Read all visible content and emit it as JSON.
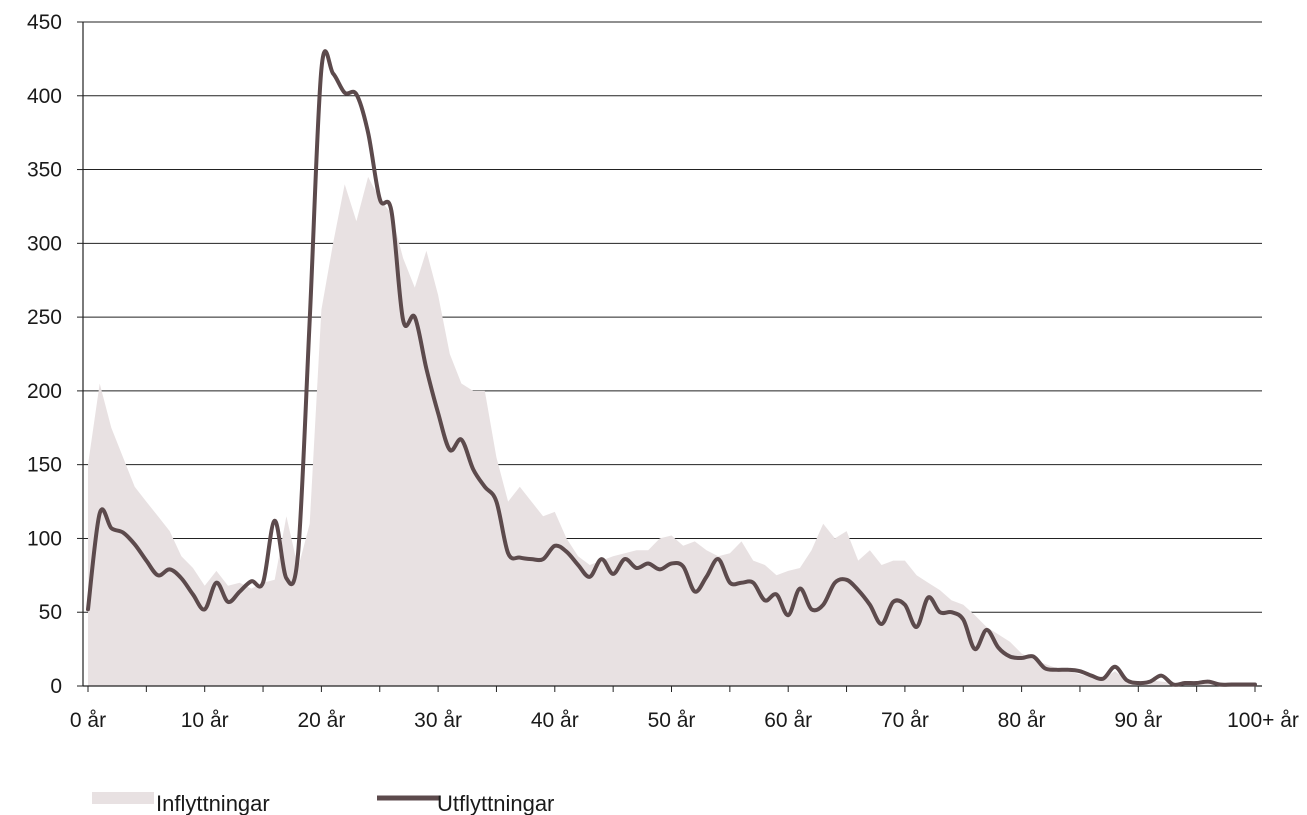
{
  "chart_data": {
    "type": "area",
    "title": "",
    "xlabel": "",
    "ylabel": "",
    "xlim": [
      0,
      100
    ],
    "ylim": [
      0,
      450
    ],
    "y_ticks": [
      0,
      50,
      100,
      150,
      200,
      250,
      300,
      350,
      400,
      450
    ],
    "x_ticks": [
      {
        "value": 0,
        "label": "0 år"
      },
      {
        "value": 10,
        "label": "10 år"
      },
      {
        "value": 20,
        "label": "20 år"
      },
      {
        "value": 30,
        "label": "30 år"
      },
      {
        "value": 40,
        "label": "40 år"
      },
      {
        "value": 50,
        "label": "50 år"
      },
      {
        "value": 60,
        "label": "60 år"
      },
      {
        "value": 70,
        "label": "70 år"
      },
      {
        "value": 80,
        "label": "80 år"
      },
      {
        "value": 90,
        "label": "90 år"
      },
      {
        "value": 100,
        "label": "100+ år"
      }
    ],
    "grid": "horizontal",
    "legend_position": "bottom-left",
    "series": [
      {
        "name": "Inflyttningar",
        "style": "area",
        "color": "#e8e1e2",
        "x": [
          0,
          1,
          2,
          3,
          4,
          5,
          6,
          7,
          8,
          9,
          10,
          11,
          12,
          13,
          14,
          15,
          16,
          17,
          18,
          19,
          20,
          21,
          22,
          23,
          24,
          25,
          26,
          27,
          28,
          29,
          30,
          31,
          32,
          33,
          34,
          35,
          36,
          37,
          38,
          39,
          40,
          41,
          42,
          43,
          44,
          45,
          46,
          47,
          48,
          49,
          50,
          51,
          52,
          53,
          54,
          55,
          56,
          57,
          58,
          59,
          60,
          61,
          62,
          63,
          64,
          65,
          66,
          67,
          68,
          69,
          70,
          71,
          72,
          73,
          74,
          75,
          76,
          77,
          78,
          79,
          80,
          81,
          82,
          83,
          84,
          85,
          86,
          87,
          88,
          89,
          90,
          91,
          92,
          93,
          94,
          95,
          96,
          97,
          98,
          99,
          100
        ],
        "values": [
          150,
          205,
          175,
          155,
          135,
          125,
          115,
          105,
          88,
          80,
          68,
          78,
          68,
          70,
          66,
          70,
          72,
          115,
          80,
          110,
          255,
          300,
          340,
          315,
          345,
          330,
          320,
          290,
          270,
          295,
          265,
          225,
          205,
          200,
          200,
          155,
          125,
          135,
          125,
          115,
          118,
          100,
          88,
          82,
          85,
          88,
          90,
          92,
          92,
          100,
          102,
          95,
          98,
          92,
          88,
          90,
          98,
          85,
          82,
          75,
          78,
          80,
          92,
          110,
          100,
          105,
          85,
          92,
          82,
          85,
          85,
          75,
          70,
          65,
          58,
          55,
          48,
          40,
          35,
          30,
          22,
          18,
          15,
          12,
          10,
          8,
          6,
          5,
          10,
          4,
          3,
          4,
          3,
          2,
          2,
          2,
          2,
          1,
          1,
          1,
          1
        ]
      },
      {
        "name": "Utflyttningar",
        "style": "line",
        "color": "#5c4a4c",
        "x": [
          0,
          1,
          2,
          3,
          4,
          5,
          6,
          7,
          8,
          9,
          10,
          11,
          12,
          13,
          14,
          15,
          16,
          17,
          18,
          19,
          20,
          21,
          22,
          23,
          24,
          25,
          26,
          27,
          28,
          29,
          30,
          31,
          32,
          33,
          34,
          35,
          36,
          37,
          38,
          39,
          40,
          41,
          42,
          43,
          44,
          45,
          46,
          47,
          48,
          49,
          50,
          51,
          52,
          53,
          54,
          55,
          56,
          57,
          58,
          59,
          60,
          61,
          62,
          63,
          64,
          65,
          66,
          67,
          68,
          69,
          70,
          71,
          72,
          73,
          74,
          75,
          76,
          77,
          78,
          79,
          80,
          81,
          82,
          83,
          84,
          85,
          86,
          87,
          88,
          89,
          90,
          91,
          92,
          93,
          94,
          95,
          96,
          97,
          98,
          99,
          100
        ],
        "values": [
          52,
          117,
          107,
          104,
          96,
          85,
          75,
          79,
          73,
          62,
          52,
          70,
          57,
          64,
          71,
          70,
          112,
          73,
          90,
          248,
          418,
          415,
          402,
          401,
          375,
          330,
          322,
          248,
          250,
          215,
          185,
          160,
          167,
          147,
          135,
          125,
          90,
          87,
          86,
          86,
          95,
          91,
          82,
          74,
          86,
          76,
          86,
          80,
          83,
          79,
          83,
          81,
          64,
          74,
          86,
          70,
          70,
          70,
          58,
          62,
          48,
          66,
          52,
          55,
          70,
          72,
          65,
          55,
          42,
          57,
          55,
          40,
          60,
          50,
          50,
          45,
          25,
          38,
          26,
          20,
          19,
          20,
          12,
          11,
          11,
          10,
          7,
          5,
          13,
          4,
          2,
          3,
          7,
          1,
          2,
          2,
          3,
          1,
          1,
          1,
          1
        ]
      }
    ]
  }
}
